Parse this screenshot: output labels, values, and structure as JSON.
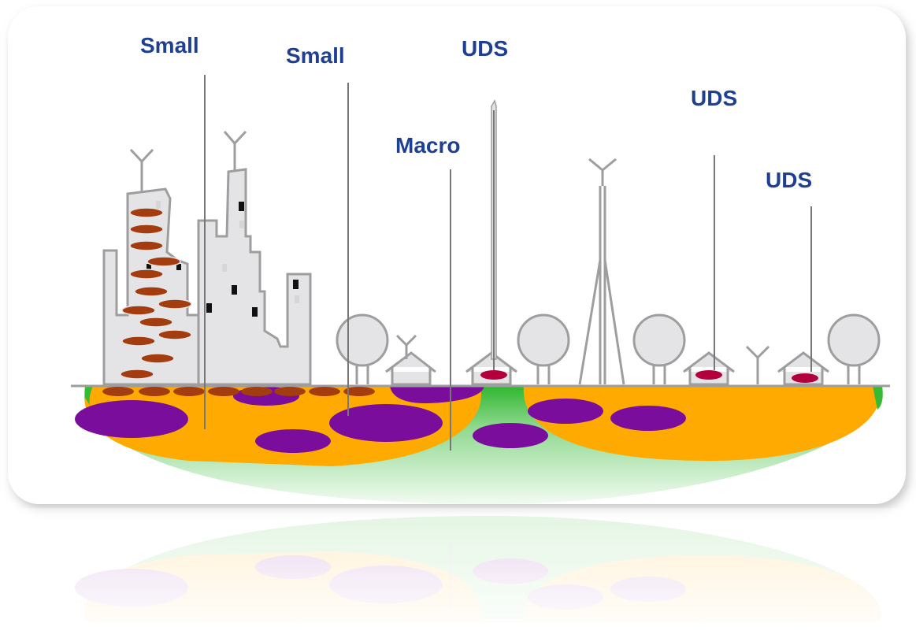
{
  "labels": {
    "small_1": "Small",
    "small_2": "Small",
    "macro": "Macro",
    "uds_1": "UDS",
    "uds_2": "UDS",
    "uds_3": "UDS"
  },
  "colors": {
    "macro_coverage": "#33bb33",
    "small_cell_coverage": "#ffaa00",
    "uds_cell": "#7a0d9c",
    "building_device": "#a33d0f",
    "house_device": "#b3003c",
    "label_text": "#1f3f93",
    "structure_gray": "#9e9e9e",
    "building_fill": "#e4e4e6"
  }
}
